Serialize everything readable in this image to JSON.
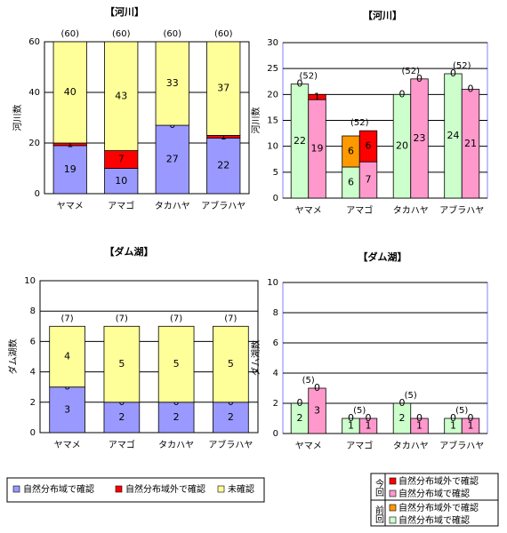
{
  "chart_data": [
    {
      "type": "bar",
      "title": "【河川】",
      "ylabel": "河川数",
      "categories": [
        "ヤマメ",
        "アマゴ",
        "タカハヤ",
        "アブラハヤ"
      ],
      "series": [
        {
          "name": "自然分布域で確認",
          "color": "#9999ff",
          "values": [
            19,
            10,
            27,
            22
          ]
        },
        {
          "name": "自然分布域外で確認",
          "color": "#ff0000",
          "values": [
            1,
            7,
            0,
            1
          ]
        },
        {
          "name": "未確認",
          "color": "#ffff99",
          "values": [
            40,
            43,
            33,
            37
          ]
        }
      ],
      "total_labels": [
        "(60)",
        "(60)",
        "(60)",
        "(60)"
      ],
      "ylim": [
        0,
        60
      ],
      "yticks": [
        0,
        20,
        40,
        60
      ],
      "grid": true,
      "border_color": "#000000"
    },
    {
      "type": "bar",
      "title": "【河川】",
      "ylabel": "河川数",
      "categories": [
        "ヤマメ",
        "アマゴ",
        "タカハヤ",
        "アブラハヤ"
      ],
      "series": [
        {
          "group": "前回",
          "name": "自然分布域で確認",
          "color": "#ccffcc",
          "values": [
            22,
            6,
            20,
            24
          ]
        },
        {
          "group": "前回",
          "name": "自然分布域外で確認",
          "color": "#ff9900",
          "values": [
            0,
            6,
            0,
            0
          ]
        },
        {
          "group": "今回",
          "name": "自然分布域で確認",
          "color": "#ff99cc",
          "values": [
            19,
            7,
            23,
            21
          ]
        },
        {
          "group": "今回",
          "name": "自然分布域外で確認",
          "color": "#ff0000",
          "values": [
            1,
            6,
            0,
            0
          ]
        }
      ],
      "total_labels": [
        "(52)",
        "(52)",
        "(52)",
        "(52)"
      ],
      "ylim": [
        0,
        30
      ],
      "yticks": [
        0,
        5,
        10,
        15,
        20,
        25,
        30
      ],
      "grid": true,
      "border_color": "#8080ff"
    },
    {
      "type": "bar",
      "title": "【ダム湖】",
      "ylabel": "ダム湖数",
      "categories": [
        "ヤマメ",
        "アマゴ",
        "タカハヤ",
        "アブラハヤ"
      ],
      "series": [
        {
          "color": "#9999ff",
          "values": [
            3,
            2,
            2,
            2
          ]
        },
        {
          "color": "#ff0000",
          "values": [
            0,
            0,
            0,
            0
          ]
        },
        {
          "color": "#ffff99",
          "values": [
            4,
            5,
            5,
            5
          ]
        }
      ],
      "total_labels": [
        "(7)",
        "(7)",
        "(7)",
        "(7)"
      ],
      "ylim": [
        0,
        10
      ],
      "yticks": [
        0,
        2,
        4,
        6,
        8,
        10
      ],
      "grid": true,
      "border_color": "#000000"
    },
    {
      "type": "bar",
      "title": "【ダム湖】",
      "ylabel": "ダム湖数",
      "categories": [
        "ヤマメ",
        "アマゴ",
        "タカハヤ",
        "アブラハヤ"
      ],
      "series": [
        {
          "group": "前回",
          "color": "#ccffcc",
          "values": [
            2,
            1,
            2,
            1
          ]
        },
        {
          "group": "前回",
          "color": "#ff9900",
          "values": [
            0,
            0,
            0,
            0
          ]
        },
        {
          "group": "今回",
          "color": "#ff99cc",
          "values": [
            3,
            1,
            1,
            1
          ]
        },
        {
          "group": "今回",
          "color": "#ff0000",
          "values": [
            0,
            0,
            0,
            0
          ]
        }
      ],
      "total_labels": [
        "(5)",
        "(5)",
        "(5)",
        "(5)"
      ],
      "ylim": [
        0,
        10
      ],
      "yticks": [
        0,
        2,
        4,
        6,
        8,
        10
      ],
      "grid": true,
      "border_color": "#8080ff"
    }
  ]
}
